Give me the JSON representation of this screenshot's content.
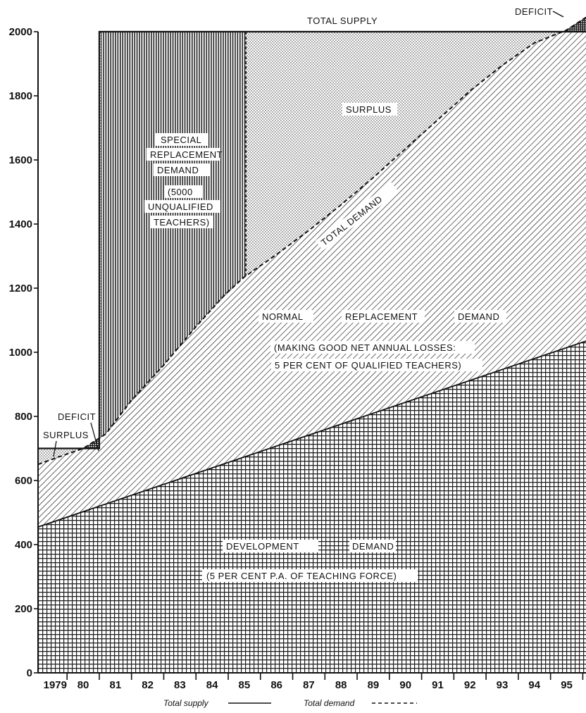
{
  "chart_data": {
    "type": "area",
    "title": "",
    "xlabel": "",
    "ylabel": "",
    "x_ticks": [
      "1979",
      "80",
      "81",
      "82",
      "83",
      "84",
      "85",
      "86",
      "87",
      "88",
      "89",
      "90",
      "91",
      "92",
      "93",
      "94",
      "95"
    ],
    "y_ticks": [
      0,
      200,
      400,
      600,
      800,
      1000,
      1200,
      1400,
      1600,
      1800,
      2000
    ],
    "xlim": [
      1978.6,
      1995.6
    ],
    "ylim": [
      0,
      2000
    ],
    "series": [
      {
        "name": "Total supply",
        "style": "solid",
        "x": [
          1978.6,
          1980.5,
          1980.5,
          1995.6
        ],
        "y": [
          700,
          700,
          2000,
          2000
        ]
      },
      {
        "name": "Total demand",
        "style": "dashed",
        "x": [
          1978.6,
          1979.0,
          1980.0,
          1980.7,
          1981.5,
          1982.5,
          1983.5,
          1984.4,
          1985.0,
          1986.0,
          1987.0,
          1988.0,
          1989.0,
          1990.0,
          1991.0,
          1992.0,
          1993.0,
          1994.0,
          1995.0,
          1995.6
        ],
        "y": [
          650,
          665,
          700,
          745,
          850,
          960,
          1080,
          1180,
          1235,
          1305,
          1380,
          1460,
          1545,
          1635,
          1725,
          1815,
          1895,
          1965,
          2005,
          2045
        ]
      },
      {
        "name": "Development demand",
        "x": [
          1978.6,
          1995.6
        ],
        "y": [
          455,
          1035
        ]
      }
    ],
    "areas": {
      "development": [
        "DEVELOPMENT",
        "DEMAND",
        "(5 PER CENT P.A. OF TEACHING FORCE)"
      ],
      "normal": [
        "NORMAL",
        "REPLACEMENT",
        "DEMAND",
        "(MAKING GOOD NET ANNUAL LOSSES:",
        "5 PER CENT OF QUALIFIED TEACHERS)"
      ],
      "special": [
        "SPECIAL",
        "REPLACEMENT",
        "DEMAND",
        "(5000",
        "UNQUALIFIED",
        "TEACHERS)"
      ],
      "surplus": "SURPLUS",
      "total_demand": "TOTAL DEMAND",
      "total_supply": "TOTAL SUPPLY",
      "deficit_top": "DEFICIT",
      "deficit_left": "DEFICIT",
      "surplus_left": "SURPLUS"
    },
    "legend": {
      "placement": "bottom-center",
      "items": [
        {
          "label": "Total supply",
          "style": "solid"
        },
        {
          "label": "Total demand",
          "style": "dashed"
        }
      ]
    },
    "grid": false
  }
}
